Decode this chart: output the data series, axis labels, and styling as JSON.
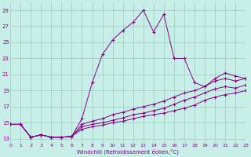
{
  "xlabel": "Windchill (Refroidissement éolien,°C)",
  "bg_color": "#c8eee8",
  "grid_color": "#99ccbb",
  "line_color": "#880088",
  "x_ticks": [
    0,
    1,
    2,
    3,
    4,
    5,
    6,
    7,
    8,
    9,
    10,
    11,
    12,
    13,
    14,
    15,
    16,
    17,
    18,
    19,
    20,
    21,
    22,
    23
  ],
  "y_ticks": [
    13,
    15,
    17,
    19,
    21,
    23,
    25,
    27,
    29
  ],
  "xlim": [
    0,
    23
  ],
  "ylim": [
    12.5,
    30.0
  ],
  "series": [
    [
      14.8,
      14.8,
      13.2,
      13.5,
      13.2,
      13.2,
      13.3,
      15.5,
      20.0,
      23.5,
      25.3,
      26.5,
      27.5,
      29.0,
      26.3,
      28.5,
      23.0,
      23.0,
      20.0,
      19.5,
      20.5,
      21.2,
      20.8,
      20.5
    ],
    [
      14.8,
      14.8,
      13.2,
      13.5,
      13.2,
      13.2,
      13.3,
      14.8,
      15.2,
      15.5,
      16.0,
      16.3,
      16.7,
      17.0,
      17.3,
      17.7,
      18.2,
      18.7,
      19.0,
      19.5,
      20.2,
      20.5,
      20.2,
      20.5
    ],
    [
      14.8,
      14.8,
      13.2,
      13.5,
      13.2,
      13.2,
      13.3,
      14.5,
      14.8,
      15.0,
      15.3,
      15.6,
      16.0,
      16.2,
      16.5,
      16.8,
      17.3,
      17.8,
      18.2,
      18.7,
      19.2,
      19.5,
      19.3,
      19.7
    ],
    [
      14.8,
      14.8,
      13.2,
      13.5,
      13.2,
      13.2,
      13.3,
      14.2,
      14.5,
      14.7,
      15.0,
      15.2,
      15.5,
      15.8,
      16.0,
      16.2,
      16.5,
      16.8,
      17.2,
      17.8,
      18.2,
      18.5,
      18.7,
      19.0
    ]
  ]
}
